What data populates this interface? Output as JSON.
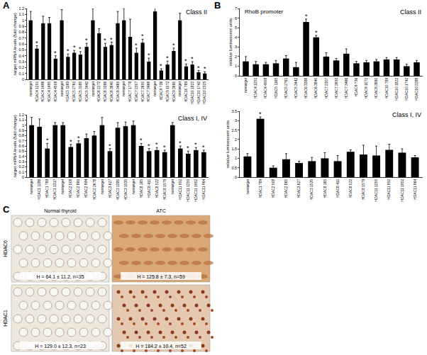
{
  "chart_data": [
    {
      "type": "bar",
      "title": "Class II",
      "y_label": "target mRNA levels (fold change)",
      "color": "#000000",
      "categories": [
        "nontarget",
        "HDAC4 1251",
        "HDAC4 1496",
        "HDAC4 1495",
        "HDAC4 4508",
        "nontarget",
        "HDAC5 1165",
        "HDAC5 2761",
        "HDAC5 3185",
        "HDAC5 3442",
        "nontarget",
        "HDAC6 2272",
        "HDAC6 3386",
        "HDAC6 3840",
        "HDAC6 3465",
        "nontarget",
        "HDAC7 1778",
        "HDAC7 2307",
        "HDAC7 2650",
        "HDAC7 3466",
        "nontarget",
        "HDAC9 736",
        "HDAC9 1072",
        "HDAC9 3880",
        "nontarget",
        "HDAC10 789",
        "HDAC10 1822",
        "HDAC10 1742",
        "HDAC10 2325"
      ],
      "values": [
        1,
        0.52,
        0.95,
        0.95,
        0.35,
        1,
        0.38,
        0.45,
        0.42,
        0.55,
        1,
        0.78,
        0.55,
        0.58,
        0.95,
        1,
        0.72,
        0.45,
        0.62,
        0.3,
        1.15,
        0.15,
        0.25,
        0.48,
        1,
        0.22,
        0.25,
        0.12,
        0.1
      ],
      "errors": [
        0.15,
        0.05,
        0.12,
        0.1,
        0.05,
        0.18,
        0.05,
        0.04,
        0.05,
        0.06,
        0.2,
        0.08,
        0.06,
        0.05,
        0.2,
        0.2,
        0.3,
        0.08,
        0.06,
        0.06,
        0.15,
        0.03,
        0.06,
        0.05,
        0.12,
        0.04,
        0.05,
        0.03,
        0.03
      ],
      "significance": [
        null,
        "*",
        null,
        null,
        "*",
        null,
        "*",
        "*",
        "*",
        "*",
        null,
        null,
        "*",
        "*",
        null,
        null,
        null,
        "*",
        "*",
        "*",
        null,
        "*",
        "*",
        "*",
        null,
        "*",
        "*",
        "*",
        "*"
      ],
      "ylim": [
        0,
        1.2
      ],
      "yticks": [
        0,
        0.1,
        0.2,
        0.3,
        0.4,
        0.5,
        0.6,
        0.7,
        0.8,
        0.9,
        1,
        1.1,
        1.2
      ]
    },
    {
      "type": "bar",
      "title": "Class I, IV",
      "y_label": "target mRNA levels (fold change)",
      "color": "#000000",
      "categories": [
        "nontarget",
        "HDAC1 1186",
        "HDAC1 789",
        "HDAC1 1317",
        "nontarget",
        "HDAC2 508",
        "HDAC2 865",
        "HDAC2 994",
        "HDAC2 2678",
        "nontarget",
        "HDAC3 627",
        "HDAC3 1380",
        "HDAC3 1535",
        "nontarget",
        "HDAC8 165",
        "HDAC8 411",
        "HDAC8 522",
        "HDAC8 1579",
        "nontarget",
        "HDAC11 952",
        "HDAC11 1255",
        "HDAC11 1952",
        "HDAC11 964"
      ],
      "values": [
        1,
        0.97,
        0.55,
        1,
        1,
        0.58,
        0.65,
        0.75,
        0.8,
        1,
        0.5,
        0.95,
        0.98,
        1,
        0.6,
        0.5,
        0.52,
        0.48,
        1,
        0.55,
        0.45,
        0.52,
        0.48
      ],
      "errors": [
        0.15,
        0.15,
        0.1,
        0.05,
        0.05,
        0.05,
        0.05,
        0.08,
        0.08,
        0.15,
        0.05,
        0.1,
        0.08,
        0.08,
        0.05,
        0.05,
        0.05,
        0.04,
        0.05,
        0.05,
        0.05,
        0.05,
        0.04
      ],
      "significance": [
        null,
        null,
        "*",
        null,
        null,
        "*",
        "*",
        null,
        null,
        null,
        "*",
        null,
        null,
        null,
        "*",
        "*",
        "*",
        "*",
        null,
        "*",
        "*",
        "*",
        "*"
      ],
      "ylim": [
        0,
        1.2
      ],
      "yticks": [
        0,
        0.1,
        0.2,
        0.3,
        0.4,
        0.5,
        0.6,
        0.7,
        0.8,
        0.9,
        1,
        1.1,
        1.2
      ]
    },
    {
      "type": "bar",
      "title": "Class II",
      "subtitle": "RhoB promoter",
      "y_label": "relative luminescent units",
      "color": "#000000",
      "categories": [
        "nontarget",
        "HDAC4 1251",
        "HDAC4 4508",
        "HDAC5 1165",
        "HDAC5 2761",
        "HDAC5 3442",
        "HDAC6 3386",
        "HDAC6 3840",
        "HDAC7 2307",
        "HDAC7 2650",
        "HDAC7 3466",
        "HDAC9 736",
        "HDAC9 1072",
        "HDAC9 3880",
        "HDAC10 789",
        "HDAC10 1822",
        "HDAC10 1742",
        "HDAC10 2288"
      ],
      "values": [
        1.5,
        1.2,
        1.2,
        1.3,
        1.8,
        0.9,
        5.6,
        4.0,
        2.0,
        1.6,
        2.3,
        1.3,
        1.4,
        1.5,
        1.7,
        1.7,
        1.0,
        1.4
      ],
      "errors": [
        0.5,
        0.3,
        0.2,
        0.3,
        0.3,
        0.5,
        0.3,
        0.2,
        0.4,
        0.2,
        0.5,
        0.2,
        0.2,
        0.2,
        0.2,
        0.2,
        0.2,
        0.2
      ],
      "significance": [
        null,
        null,
        null,
        null,
        null,
        null,
        "*",
        "*",
        null,
        null,
        null,
        null,
        null,
        null,
        null,
        null,
        null,
        null
      ],
      "ylim": [
        0,
        7
      ],
      "yticks": [
        0,
        1,
        2,
        3,
        4,
        5,
        6,
        7
      ]
    },
    {
      "type": "bar",
      "title": "Class I, IV",
      "y_label": "relative luminescent units",
      "color": "#000000",
      "categories": [
        "nontarget",
        "HDAC1 789",
        "HDAC2 508",
        "HDAC2 865",
        "HDAC3 627",
        "HDAC3 1535",
        "HDAC8 165",
        "HDAC8 411",
        "HDAC8 522",
        "HDAC8 1579",
        "HDAC11 1255",
        "HDAC11 952",
        "HDAC11 1952",
        "HDAC11 964"
      ],
      "values": [
        1.1,
        3.1,
        0.5,
        0.95,
        0.75,
        0.85,
        1.0,
        0.85,
        1.35,
        1.2,
        1.15,
        1.45,
        1.3,
        1.05
      ],
      "errors": [
        0.15,
        0.1,
        0.1,
        0.3,
        0.1,
        0.2,
        0.3,
        0.3,
        0.1,
        0.5,
        0.5,
        0.3,
        0.2,
        0.1
      ],
      "significance": [
        null,
        "*",
        null,
        null,
        null,
        null,
        null,
        null,
        null,
        null,
        null,
        null,
        null,
        null
      ],
      "ylim": [
        0,
        3.5
      ],
      "yticks": [
        0,
        0.5,
        1,
        1.5,
        2,
        2.5,
        3,
        3.5
      ]
    }
  ],
  "panel_labels": [
    "A",
    "B",
    "C"
  ],
  "panel_c": {
    "columns": [
      "Normal thyroid",
      "ATC"
    ],
    "rows": [
      "HDAC6",
      "HDAC1"
    ],
    "captions": [
      [
        "H = 64.1 ± 11.2, n=35",
        "H = 125.8 ± 7.3, n=59"
      ],
      [
        "H = 129.0 ± 12.3, n=23",
        "H = 184.2 ± 10.4, n=52"
      ]
    ]
  }
}
